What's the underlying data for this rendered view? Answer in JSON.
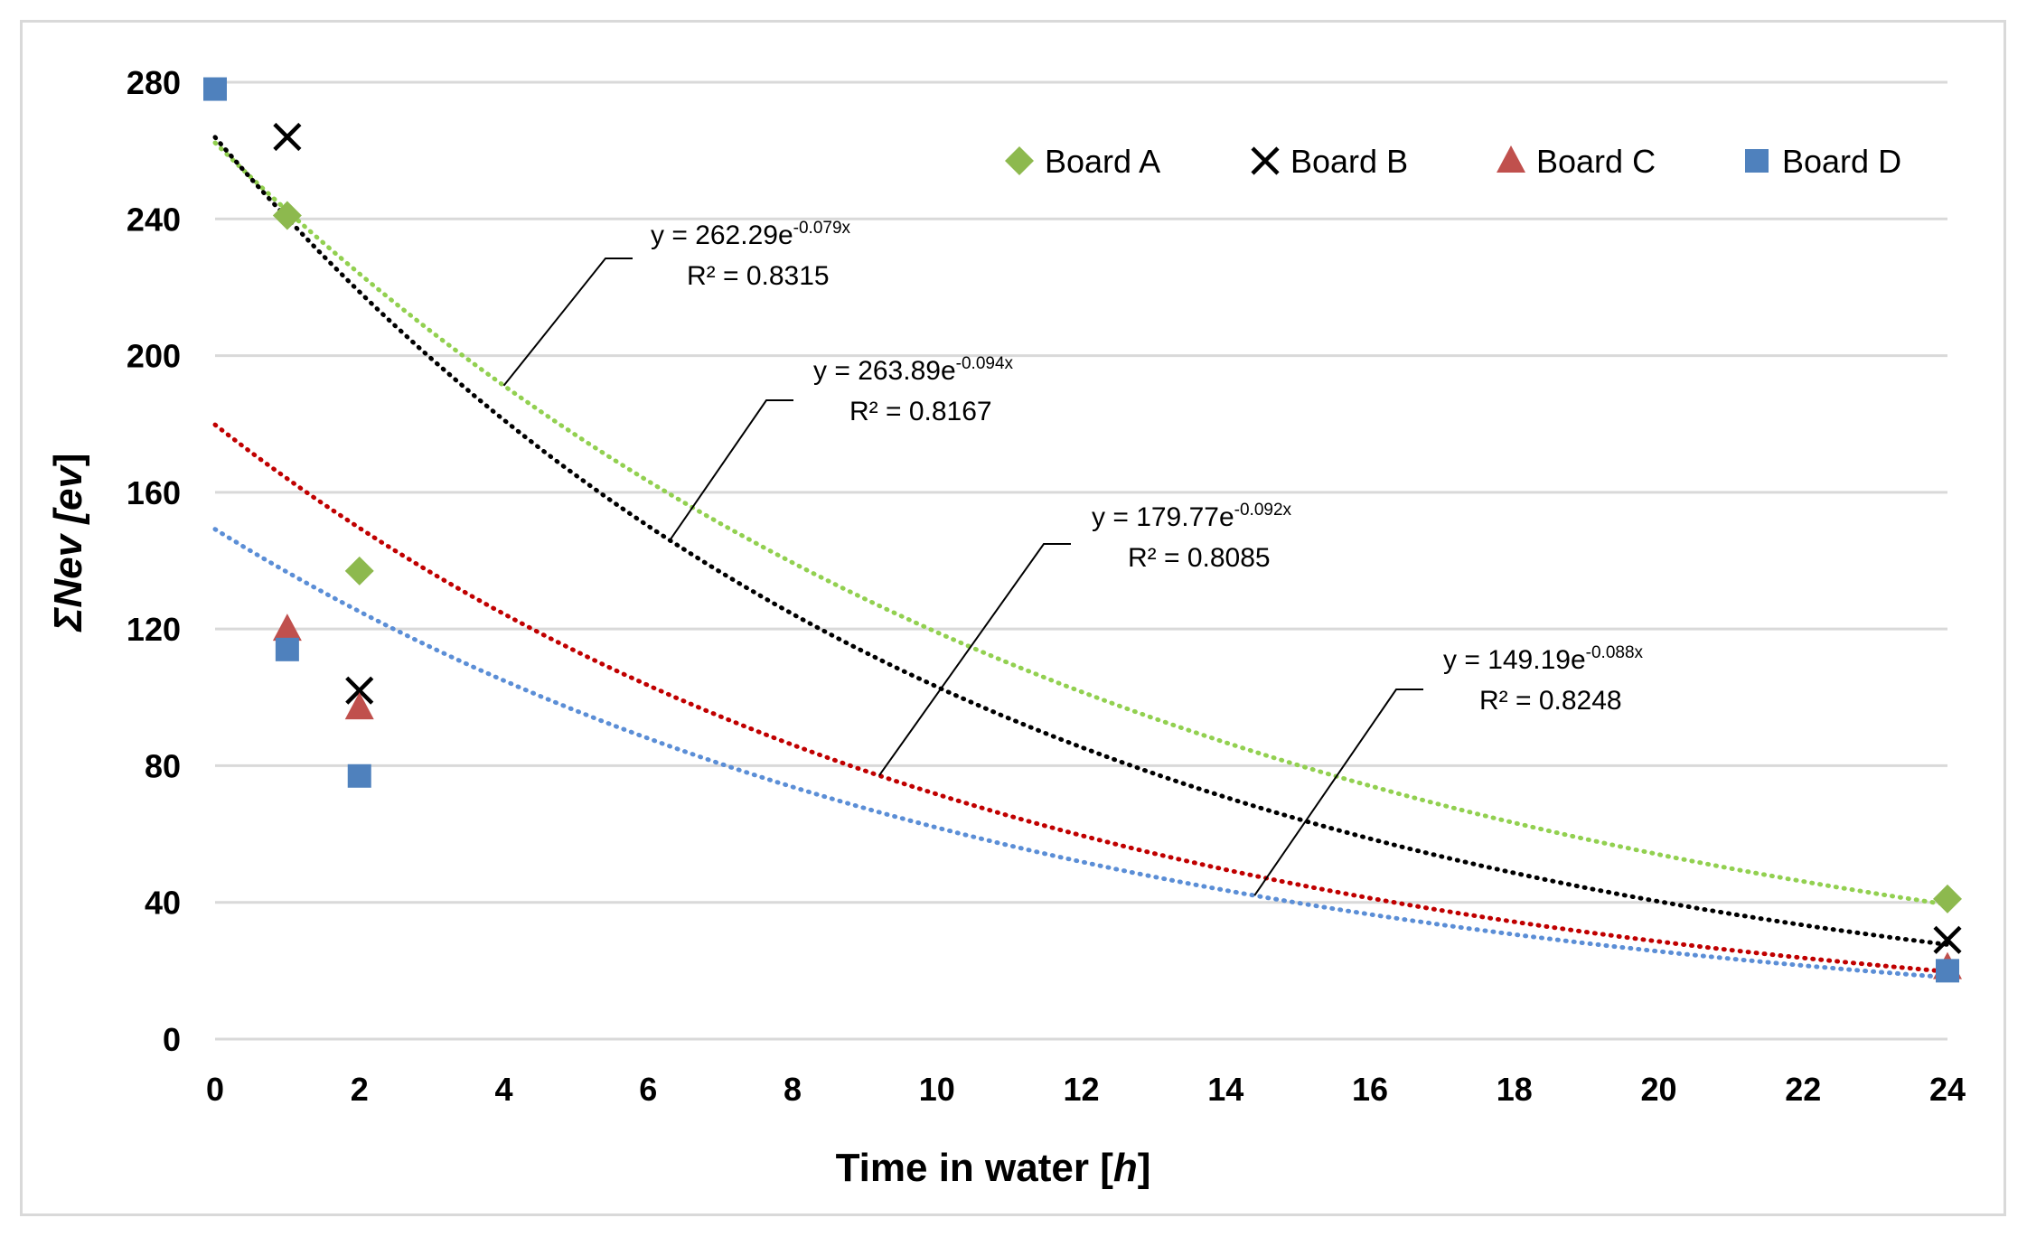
{
  "chart_data": {
    "type": "scatter",
    "title": "",
    "xlabel_main": "Time in water [",
    "xlabel_italic": "h",
    "xlabel_end": "]",
    "ylabel_main": "ΣNev [",
    "ylabel_italic": "ev",
    "ylabel_end": "]",
    "xlim": [
      0,
      24
    ],
    "ylim": [
      0,
      280
    ],
    "xticks": [
      0,
      2,
      4,
      6,
      8,
      10,
      12,
      14,
      16,
      18,
      20,
      22,
      24
    ],
    "yticks": [
      0,
      40,
      80,
      120,
      160,
      200,
      240,
      280
    ],
    "grid": "horizontal",
    "legend_position": "top-right",
    "series": [
      {
        "name": "Board A",
        "marker": "diamond",
        "color": "#8db94e",
        "x": [
          1,
          2,
          24
        ],
        "y": [
          241,
          137,
          41
        ],
        "trend": {
          "type": "exponential",
          "a": 262.29,
          "b": -0.079,
          "color": "#92d050",
          "eq_main": "y = 262.29e",
          "eq_exp": "-0.079x",
          "r2": "R² = 0.8315",
          "leader_x": 4.0
        }
      },
      {
        "name": "Board B",
        "marker": "x",
        "color": "#000000",
        "x": [
          1,
          2,
          24
        ],
        "y": [
          264,
          102,
          29
        ],
        "trend": {
          "type": "exponential",
          "a": 263.89,
          "b": -0.094,
          "color": "#000000",
          "eq_main": "y = 263.89e",
          "eq_exp": "-0.094x",
          "r2": "R² = 0.8167",
          "leader_x": 6.3
        }
      },
      {
        "name": "Board C",
        "marker": "triangle",
        "color": "#c0504d",
        "x": [
          1,
          2,
          24
        ],
        "y": [
          120,
          97,
          21
        ],
        "trend": {
          "type": "exponential",
          "a": 179.77,
          "b": -0.092,
          "color": "#c00000",
          "eq_main": "y = 179.77e",
          "eq_exp": "-0.092x",
          "r2": "R² = 0.8085",
          "leader_x": 9.2
        }
      },
      {
        "name": "Board D",
        "marker": "square",
        "color": "#4f81bd",
        "x": [
          0,
          1,
          2,
          24
        ],
        "y": [
          278,
          114,
          77,
          20
        ],
        "trend": {
          "type": "exponential",
          "a": 149.19,
          "b": -0.088,
          "color": "#5b8ed6",
          "eq_main": "y = 149.19e",
          "eq_exp": "-0.088x",
          "r2": "R² = 0.8248",
          "leader_x": 14.4
        }
      }
    ]
  }
}
